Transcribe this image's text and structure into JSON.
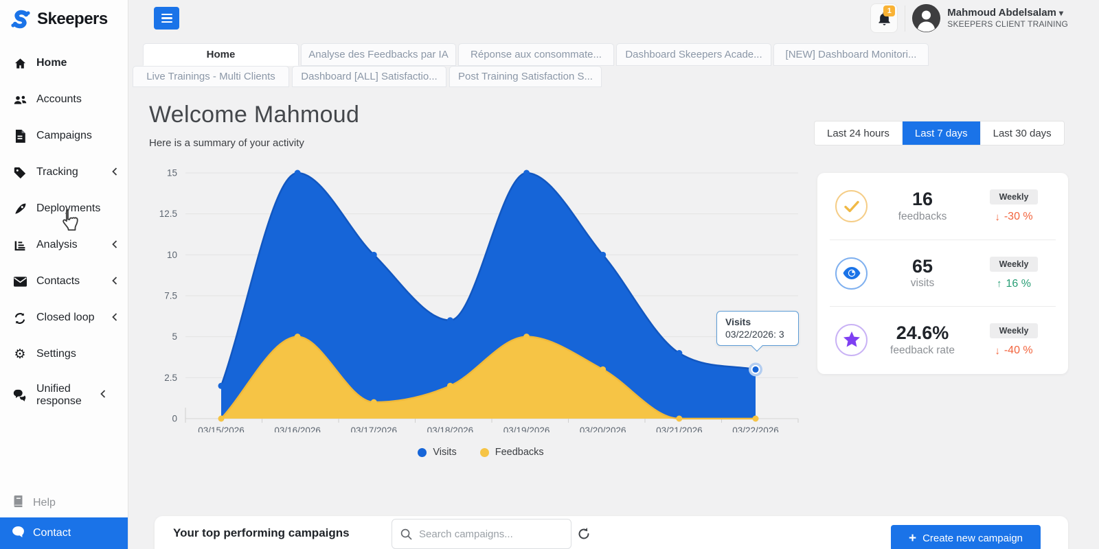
{
  "brand": {
    "name": "Skeepers"
  },
  "sidebar": {
    "items": [
      {
        "label": "Home",
        "icon": "home-icon",
        "active": true
      },
      {
        "label": "Accounts",
        "icon": "users-icon"
      },
      {
        "label": "Campaigns",
        "icon": "document-icon"
      },
      {
        "label": "Tracking",
        "icon": "tag-icon",
        "chevron": true
      },
      {
        "label": "Deployments",
        "icon": "rocket-icon"
      },
      {
        "label": "Analysis",
        "icon": "bar-chart-icon",
        "chevron": true
      },
      {
        "label": "Contacts",
        "icon": "envelope-icon",
        "chevron": true
      },
      {
        "label": "Closed loop",
        "icon": "loop-icon",
        "chevron": true
      },
      {
        "label": "Settings",
        "icon": "gear-icon"
      },
      {
        "label": "Unified response",
        "icon": "chats-icon",
        "chevron": true
      }
    ],
    "help_label": "Help",
    "contact_label": "Contact"
  },
  "header": {
    "notification_count": "1",
    "user_name": "Mahmoud Abdelsalam",
    "user_caret": "▾",
    "account_name": "SKEEPERS CLIENT TRAINING"
  },
  "tabs": {
    "row1": [
      {
        "label": "Home",
        "active": true
      },
      {
        "label": "Analyse des Feedbacks par IA"
      },
      {
        "label": "Réponse aux consommate..."
      },
      {
        "label": "Dashboard Skeepers Acade..."
      },
      {
        "label": "[NEW] Dashboard Monitori..."
      }
    ],
    "row2": [
      {
        "label": "Live Trainings - Multi Clients"
      },
      {
        "label": "Dashboard [ALL] Satisfactio..."
      },
      {
        "label": "Post Training Satisfaction S..."
      }
    ]
  },
  "main": {
    "welcome_title": "Welcome Mahmoud",
    "welcome_subtitle": "Here is a summary of your activity"
  },
  "time_range": {
    "options": [
      "Last 24 hours",
      "Last 7 days",
      "Last 30 days"
    ],
    "active": "Last 7 days"
  },
  "chart_data": {
    "type": "area",
    "title": "",
    "x": [
      "03/15/2026",
      "03/16/2026",
      "03/17/2026",
      "03/18/2026",
      "03/19/2026",
      "03/20/2026",
      "03/21/2026",
      "03/22/2026"
    ],
    "series": [
      {
        "name": "Visits",
        "color": "#1665d8",
        "stroke": "#1257c0",
        "values": [
          2,
          15,
          10,
          6,
          15,
          10,
          4,
          3
        ]
      },
      {
        "name": "Feedbacks",
        "color": "#f6c445",
        "stroke": "#f0b93a",
        "values": [
          0,
          5,
          1,
          2,
          5,
          3,
          0,
          0
        ]
      }
    ],
    "ylim": [
      0,
      15
    ],
    "yticks": [
      0,
      2.5,
      5,
      7.5,
      10,
      12.5,
      15
    ],
    "grid": true,
    "legend_position": "bottom",
    "highlight": {
      "series": "Visits",
      "x": "03/22/2026",
      "value": 3
    }
  },
  "tooltip": {
    "title": "Visits",
    "line": "03/22/2026: 3"
  },
  "stats": [
    {
      "value": "16",
      "label": "feedbacks",
      "period": "Weekly",
      "arrow": "↓",
      "change": "-30 %",
      "trend": "down"
    },
    {
      "value": "65",
      "label": "visits",
      "period": "Weekly",
      "arrow": "↑",
      "change": "16 %",
      "trend": "up"
    },
    {
      "value": "24.6%",
      "label": "feedback rate",
      "period": "Weekly",
      "arrow": "↓",
      "change": "-40 %",
      "trend": "down"
    }
  ],
  "campaigns_section": {
    "title": "Your top performing campaigns",
    "search_placeholder": "Search campaigns...",
    "create_plus": "+",
    "create_button": "Create new campaign"
  },
  "colors": {
    "accent": "#1a73e8",
    "chart_blue": "#1665d8",
    "chart_yellow": "#f6c445",
    "negative": "#f2633c",
    "positive": "#279d74",
    "amber_ring": "#f5cd87",
    "blue_ring": "#7fb0ef",
    "purple_ring": "#c9b2f5",
    "purple": "#7e3ff2"
  }
}
